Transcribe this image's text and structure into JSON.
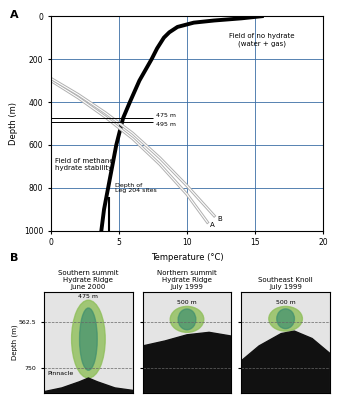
{
  "chart_data": [
    {
      "panel": "A",
      "type": "line",
      "x_label": "Temperature (°C)",
      "y_label": "Depth (m)",
      "xlim": [
        0,
        20
      ],
      "ylim": [
        1000,
        0
      ],
      "xticks": [
        0,
        5,
        10,
        15,
        20
      ],
      "yticks": [
        0,
        200,
        400,
        600,
        800,
        1000
      ],
      "grid": true,
      "series": [
        {
          "color": "#000000",
          "x": [
            15.5,
            14,
            12,
            10.5,
            9.3,
            8.7,
            8.3,
            7.8,
            7.4,
            6.5,
            5.8,
            5.3,
            5.2,
            4.8,
            4.5,
            4.2,
            3.9,
            3.7
          ],
          "y": [
            0,
            10,
            20,
            30,
            50,
            75,
            100,
            150,
            200,
            300,
            400,
            475,
            500,
            600,
            700,
            800,
            900,
            1000
          ]
        },
        {
          "name": "A",
          "color": "#b0b0b0",
          "x": [
            0,
            2,
            4,
            6,
            8,
            10,
            11.5
          ],
          "y": [
            300,
            380,
            470,
            570,
            690,
            830,
            960
          ]
        },
        {
          "name": "B",
          "color": "#b0b0b0",
          "x": [
            0,
            2,
            4,
            6,
            8,
            10,
            12
          ],
          "y": [
            290,
            365,
            450,
            545,
            660,
            790,
            930
          ]
        }
      ],
      "depth_lines": [
        {
          "value": 475,
          "label": "475 m"
        },
        {
          "value": 495,
          "label": "495 m"
        }
      ],
      "leg204_sites": {
        "label": "Depth of\nLeg 204 sites",
        "x": 4.3,
        "y_range": [
          840,
          1000
        ]
      },
      "field_labels": [
        "Field of no hydrate\n(water + gas)",
        "Field of methane\nhydrate stability"
      ]
    },
    {
      "panel": "B",
      "type": "image",
      "title": "Southern summit\nHydrate Ridge\nJune 2000",
      "y_label": "Depth (m)",
      "ylim": [
        850,
        440
      ],
      "yticks": [
        562.5,
        750
      ],
      "tick_labels": "y",
      "plume_top": {
        "value": 475,
        "label": "475 m"
      },
      "annotations": [
        "Pinnacle"
      ]
    },
    {
      "type": "image",
      "title": "Northern summit\nHydrate Ridge\nJuly 1999",
      "ylim": [
        850,
        440
      ],
      "yticks": [
        562.5,
        750
      ],
      "tick_labels": false,
      "plume_top": {
        "value": 500,
        "label": "500 m"
      }
    },
    {
      "type": "image",
      "title": "Southeast Knoll\nJuly 1999",
      "ylim": [
        850,
        440
      ],
      "yticks": [
        562.5,
        750
      ],
      "tick_labels": false,
      "plume_top": {
        "value": 500,
        "label": "500 m"
      }
    }
  ]
}
